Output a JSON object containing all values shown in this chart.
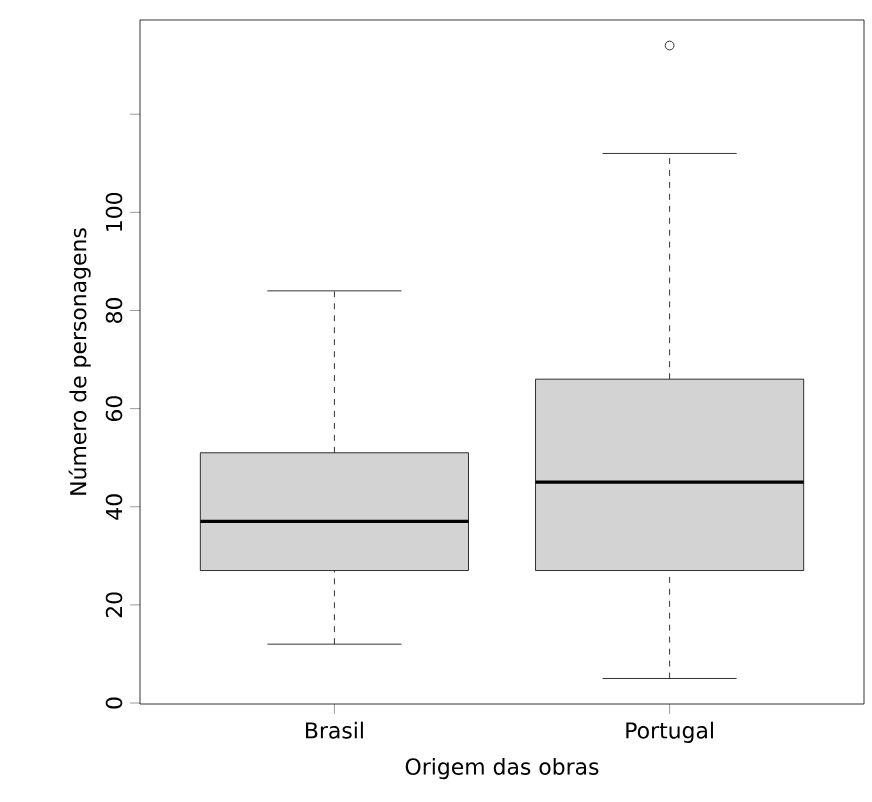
{
  "chart_data": {
    "type": "box",
    "categories": [
      "Brasil",
      "Portugal"
    ],
    "boxes": [
      {
        "low": 12,
        "q1": 27,
        "median": 37,
        "q3": 51,
        "high": 84
      },
      {
        "low": 5,
        "q1": 27,
        "median": 45,
        "q3": 66,
        "high": 112,
        "outliers": [
          134
        ]
      }
    ],
    "color": "#d3d3d3",
    "xlabel": "Origem das obras",
    "ylabel": "Número de personagens",
    "ylim": [
      -0.2,
      139.2
    ],
    "yticks": [
      0,
      20,
      40,
      60,
      80,
      100,
      {
        "value": 120,
        "label": null
      }
    ]
  }
}
